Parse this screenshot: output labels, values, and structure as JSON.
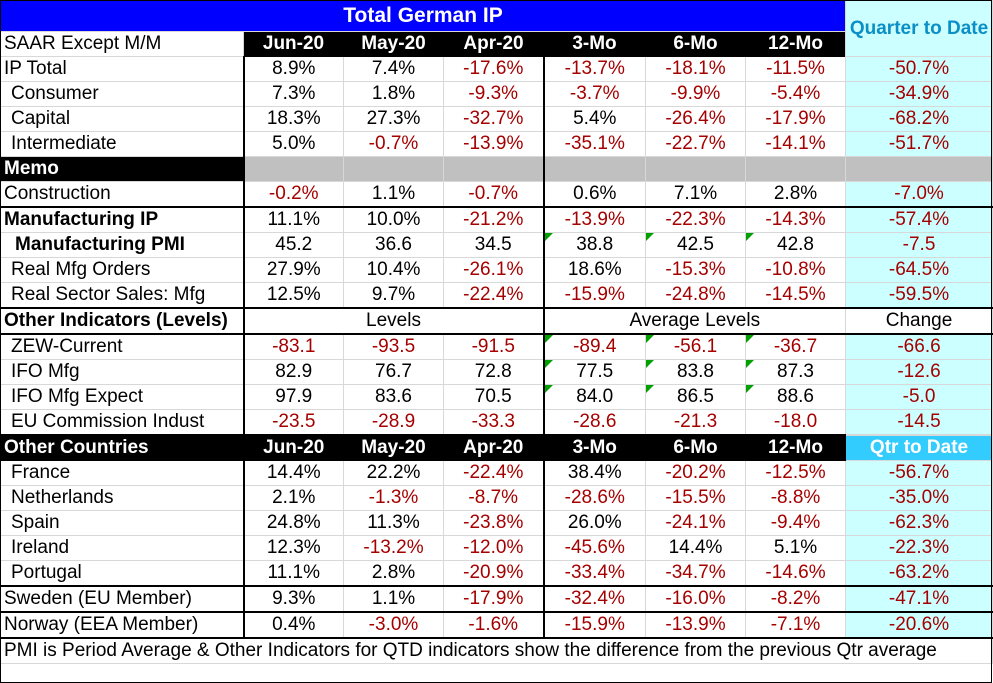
{
  "title": "Total German IP",
  "quarter_header": "Quarter to Date",
  "header": {
    "label": "SAAR Except M/M",
    "cols": [
      "Jun-20",
      "May-20",
      "Apr-20",
      "3-Mo",
      "6-Mo",
      "12-Mo"
    ]
  },
  "ip_rows": [
    {
      "label": "IP Total",
      "values": [
        "8.9%",
        "7.4%",
        "-17.6%",
        "-13.7%",
        "-18.1%",
        "-11.5%"
      ],
      "qtd": "-50.7%"
    },
    {
      "label": "Consumer",
      "values": [
        "7.3%",
        "1.8%",
        "-9.3%",
        "-3.7%",
        "-9.9%",
        "-5.4%"
      ],
      "qtd": "-34.9%"
    },
    {
      "label": "Capital",
      "values": [
        "18.3%",
        "27.3%",
        "-32.7%",
        "5.4%",
        "-26.4%",
        "-17.9%"
      ],
      "qtd": "-68.2%"
    },
    {
      "label": "Intermediate",
      "values": [
        "5.0%",
        "-0.7%",
        "-13.9%",
        "-35.1%",
        "-22.7%",
        "-14.1%"
      ],
      "qtd": "-51.7%"
    }
  ],
  "memo_label": "Memo",
  "construction": {
    "label": "Construction",
    "values": [
      "-0.2%",
      "1.1%",
      "-0.7%",
      "0.6%",
      "7.1%",
      "2.8%"
    ],
    "qtd": "-7.0%"
  },
  "mfg_rows": [
    {
      "label": "Manufacturing IP",
      "values": [
        "11.1%",
        "10.0%",
        "-21.2%",
        "-13.9%",
        "-22.3%",
        "-14.3%"
      ],
      "qtd": "-57.4%"
    },
    {
      "label": "Manufacturing PMI",
      "values": [
        "45.2",
        "36.6",
        "34.5",
        "38.8",
        "42.5",
        "42.8"
      ],
      "qtd": "-7.5"
    },
    {
      "label": "Real Mfg Orders",
      "values": [
        "27.9%",
        "10.4%",
        "-26.1%",
        "18.6%",
        "-15.3%",
        "-10.8%"
      ],
      "qtd": "-64.5%"
    },
    {
      "label": "Real Sector Sales: Mfg",
      "values": [
        "12.5%",
        "9.7%",
        "-22.4%",
        "-15.9%",
        "-24.8%",
        "-14.5%"
      ],
      "qtd": "-59.5%"
    }
  ],
  "other_indicators": {
    "label": "Other Indicators (Levels)",
    "levels": "Levels",
    "average_levels": "Average Levels",
    "change": "Change"
  },
  "indicator_rows": [
    {
      "label": "ZEW-Current",
      "values": [
        "-83.1",
        "-93.5",
        "-91.5",
        "-89.4",
        "-56.1",
        "-36.7"
      ],
      "qtd": "-66.6"
    },
    {
      "label": "IFO Mfg",
      "values": [
        "82.9",
        "76.7",
        "72.8",
        "77.5",
        "83.8",
        "87.3"
      ],
      "qtd": "-12.6"
    },
    {
      "label": "IFO Mfg Expect",
      "values": [
        "97.9",
        "83.6",
        "70.5",
        "84.0",
        "86.5",
        "88.6"
      ],
      "qtd": "-5.0"
    },
    {
      "label": "EU Commission Indust",
      "values": [
        "-23.5",
        "-28.9",
        "-33.3",
        "-28.6",
        "-21.3",
        "-18.0"
      ],
      "qtd": "-14.5"
    }
  ],
  "countries_header": {
    "label": "Other Countries",
    "cols": [
      "Jun-20",
      "May-20",
      "Apr-20",
      "3-Mo",
      "6-Mo",
      "12-Mo"
    ],
    "qtd": "Qtr to Date"
  },
  "country_rows": [
    {
      "label": "France",
      "values": [
        "14.4%",
        "22.2%",
        "-22.4%",
        "38.4%",
        "-20.2%",
        "-12.5%"
      ],
      "qtd": "-56.7%"
    },
    {
      "label": "Netherlands",
      "values": [
        "2.1%",
        "-1.3%",
        "-8.7%",
        "-28.6%",
        "-15.5%",
        "-8.8%"
      ],
      "qtd": "-35.0%"
    },
    {
      "label": "Spain",
      "values": [
        "24.8%",
        "11.3%",
        "-23.8%",
        "26.0%",
        "-24.1%",
        "-9.4%"
      ],
      "qtd": "-62.3%"
    },
    {
      "label": "Ireland",
      "values": [
        "12.3%",
        "-13.2%",
        "-12.0%",
        "-45.6%",
        "14.4%",
        "5.1%"
      ],
      "qtd": "-22.3%"
    },
    {
      "label": "Portugal",
      "values": [
        "11.1%",
        "2.8%",
        "-20.9%",
        "-33.4%",
        "-34.7%",
        "-14.6%"
      ],
      "qtd": "-63.2%"
    }
  ],
  "extra_rows": [
    {
      "label": "Sweden (EU Member)",
      "values": [
        "9.3%",
        "1.1%",
        "-17.9%",
        "-32.4%",
        "-16.0%",
        "-8.2%"
      ],
      "qtd": "-47.1%"
    },
    {
      "label": "Norway (EEA Member)",
      "values": [
        "0.4%",
        "-3.0%",
        "-1.6%",
        "-15.9%",
        "-13.9%",
        "-7.1%"
      ],
      "qtd": "-20.6%"
    }
  ],
  "footnote": "PMI is Period Average & Other Indicators for QTD indicators show the difference from the previous Qtr average",
  "colors": {
    "title_bg": "#0000ff",
    "qtd_bg": "#ccffff",
    "qtd_head_bg": "#33ccff",
    "negative": "#a50000",
    "flag": "#00a000"
  }
}
